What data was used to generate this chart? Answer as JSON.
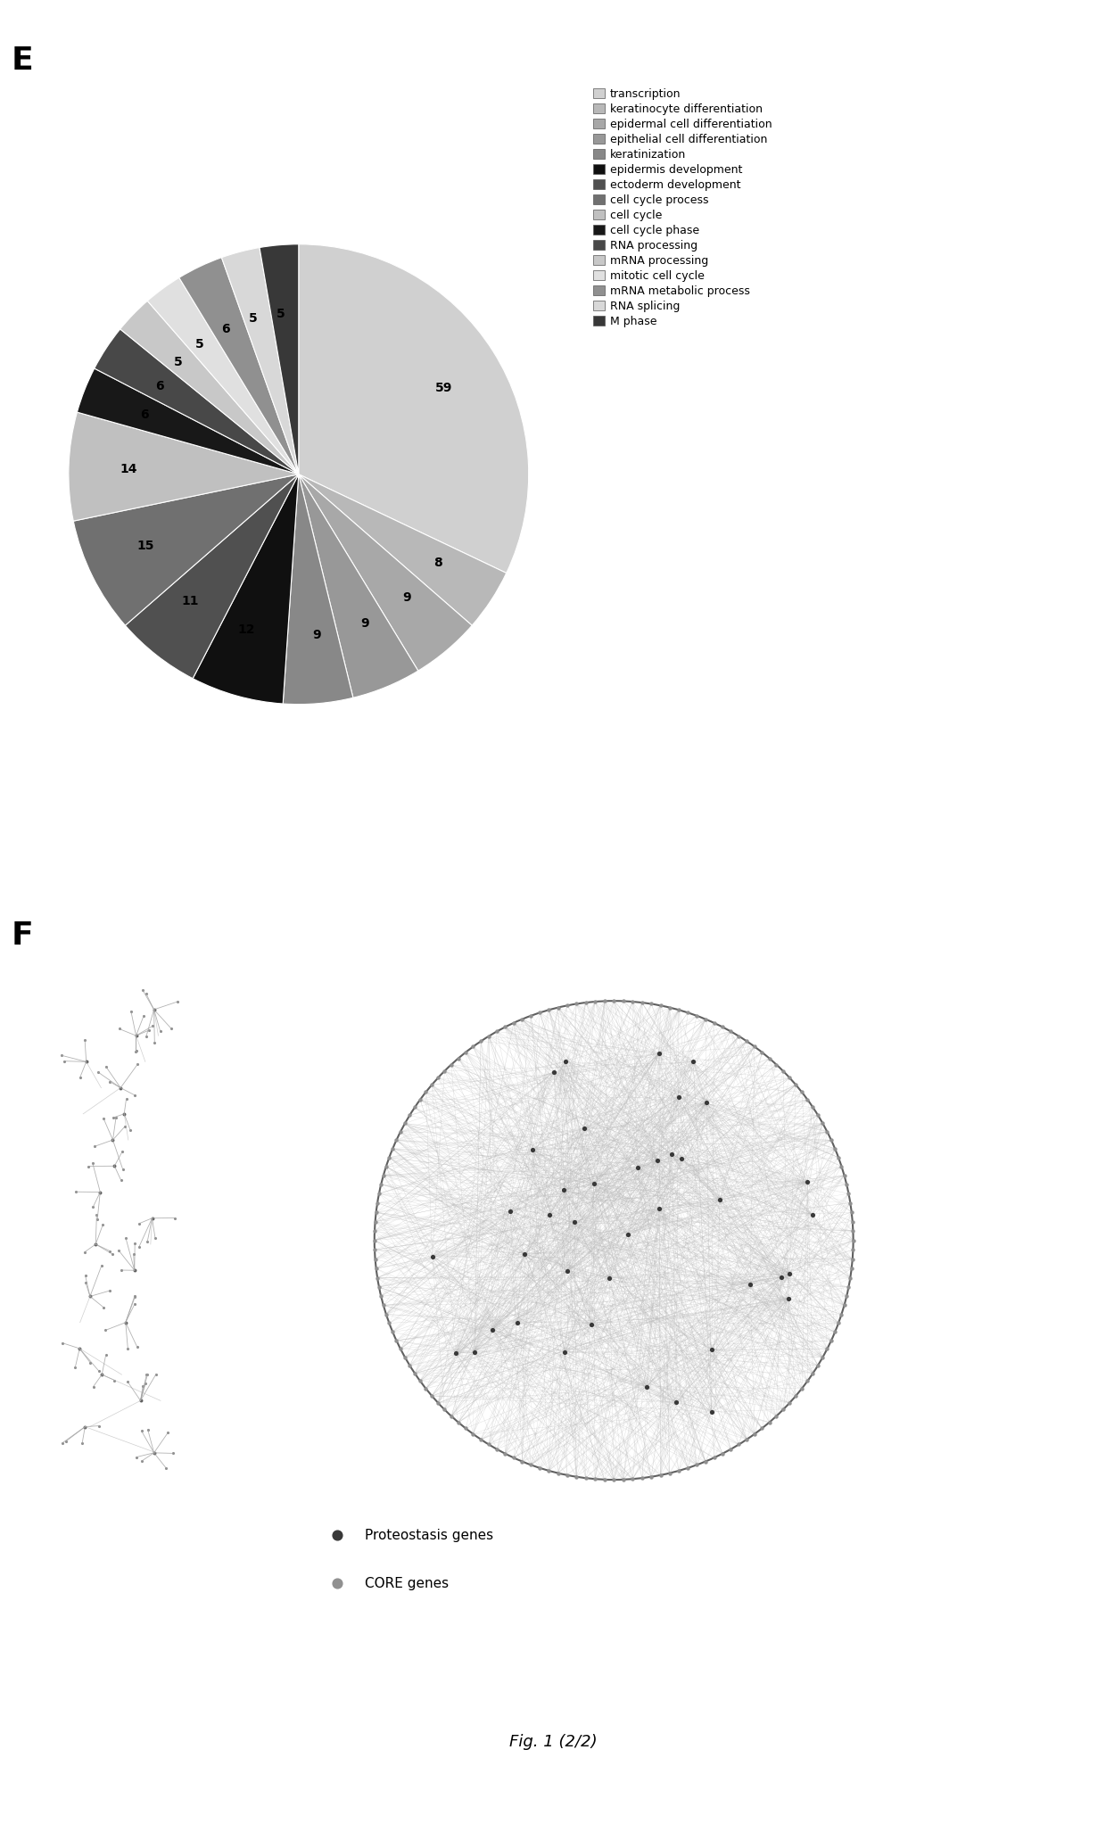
{
  "panel_e_label": "E",
  "panel_f_label": "F",
  "fig_caption": "Fig. 1 (2/2)",
  "pie_values": [
    59,
    8,
    9,
    9,
    9,
    12,
    11,
    15,
    14,
    6,
    6,
    5,
    5,
    6,
    5,
    5
  ],
  "pie_labels": [
    "59",
    "8",
    "9",
    "9",
    "9",
    "12",
    "11",
    "15",
    "14",
    "6",
    "6",
    "5",
    "5",
    "6",
    "5",
    "5"
  ],
  "pie_colors": [
    "#d0d0d0",
    "#b8b8b8",
    "#a8a8a8",
    "#989898",
    "#888888",
    "#101010",
    "#505050",
    "#707070",
    "#c0c0c0",
    "#181818",
    "#484848",
    "#c8c8c8",
    "#e0e0e0",
    "#909090",
    "#d8d8d8",
    "#383838"
  ],
  "legend_labels": [
    "transcription",
    "keratinocyte differentiation",
    "epidermal cell differentiation",
    "epithelial cell differentiation",
    "keratinization",
    "epidermis development",
    "ectoderm development",
    "cell cycle process",
    "cell cycle",
    "cell cycle phase",
    "RNA processing",
    "mRNA processing",
    "mitotic cell cycle",
    "mRNA metabolic process",
    "RNA splicing",
    "M phase"
  ],
  "bg_color": "#e0e0e0",
  "network_circle_color": "#606060",
  "network_line_color": "#b8b8b8",
  "proteostasis_color": "#383838",
  "core_color": "#909090",
  "white": "#ffffff"
}
